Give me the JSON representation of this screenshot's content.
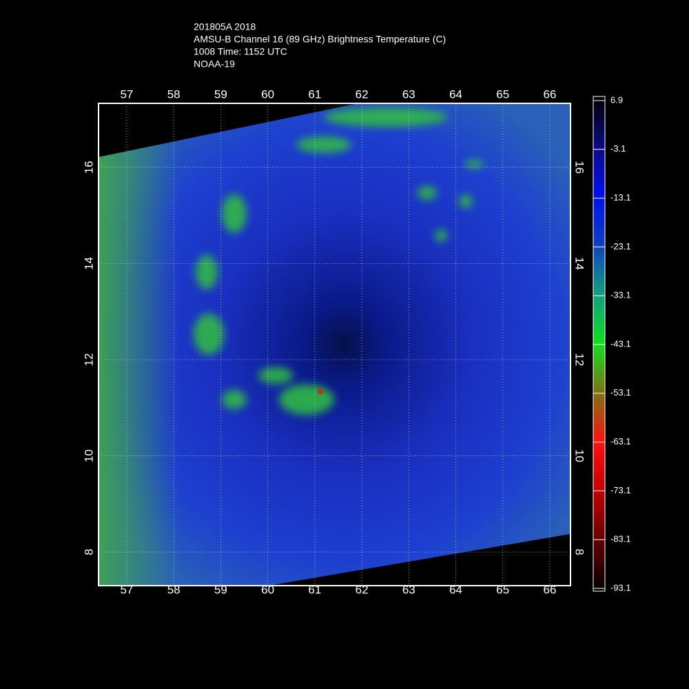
{
  "header": {
    "lines": [
      "201805A 2018",
      "AMSU-B Channel 16 (89 GHz) Brightness Temperature (C)",
      "1008 Time: 1152 UTC",
      "NOAA-19"
    ]
  },
  "map": {
    "lonlim": [
      56.4,
      66.44
    ],
    "latlim": [
      7.3,
      17.33
    ],
    "lon_ticks": [
      57,
      58,
      59,
      60,
      61,
      62,
      63,
      64,
      65,
      66
    ],
    "lat_ticks": [
      8,
      10,
      12,
      14,
      16
    ],
    "grid": true
  },
  "colorbar": {
    "lim": [
      -93.1,
      6.9
    ],
    "ticks": [
      6.9,
      -3.1,
      -13.1,
      -23.1,
      -33.1,
      -43.1,
      -53.1,
      -63.1,
      -73.1,
      -83.1,
      -93.1
    ]
  }
}
